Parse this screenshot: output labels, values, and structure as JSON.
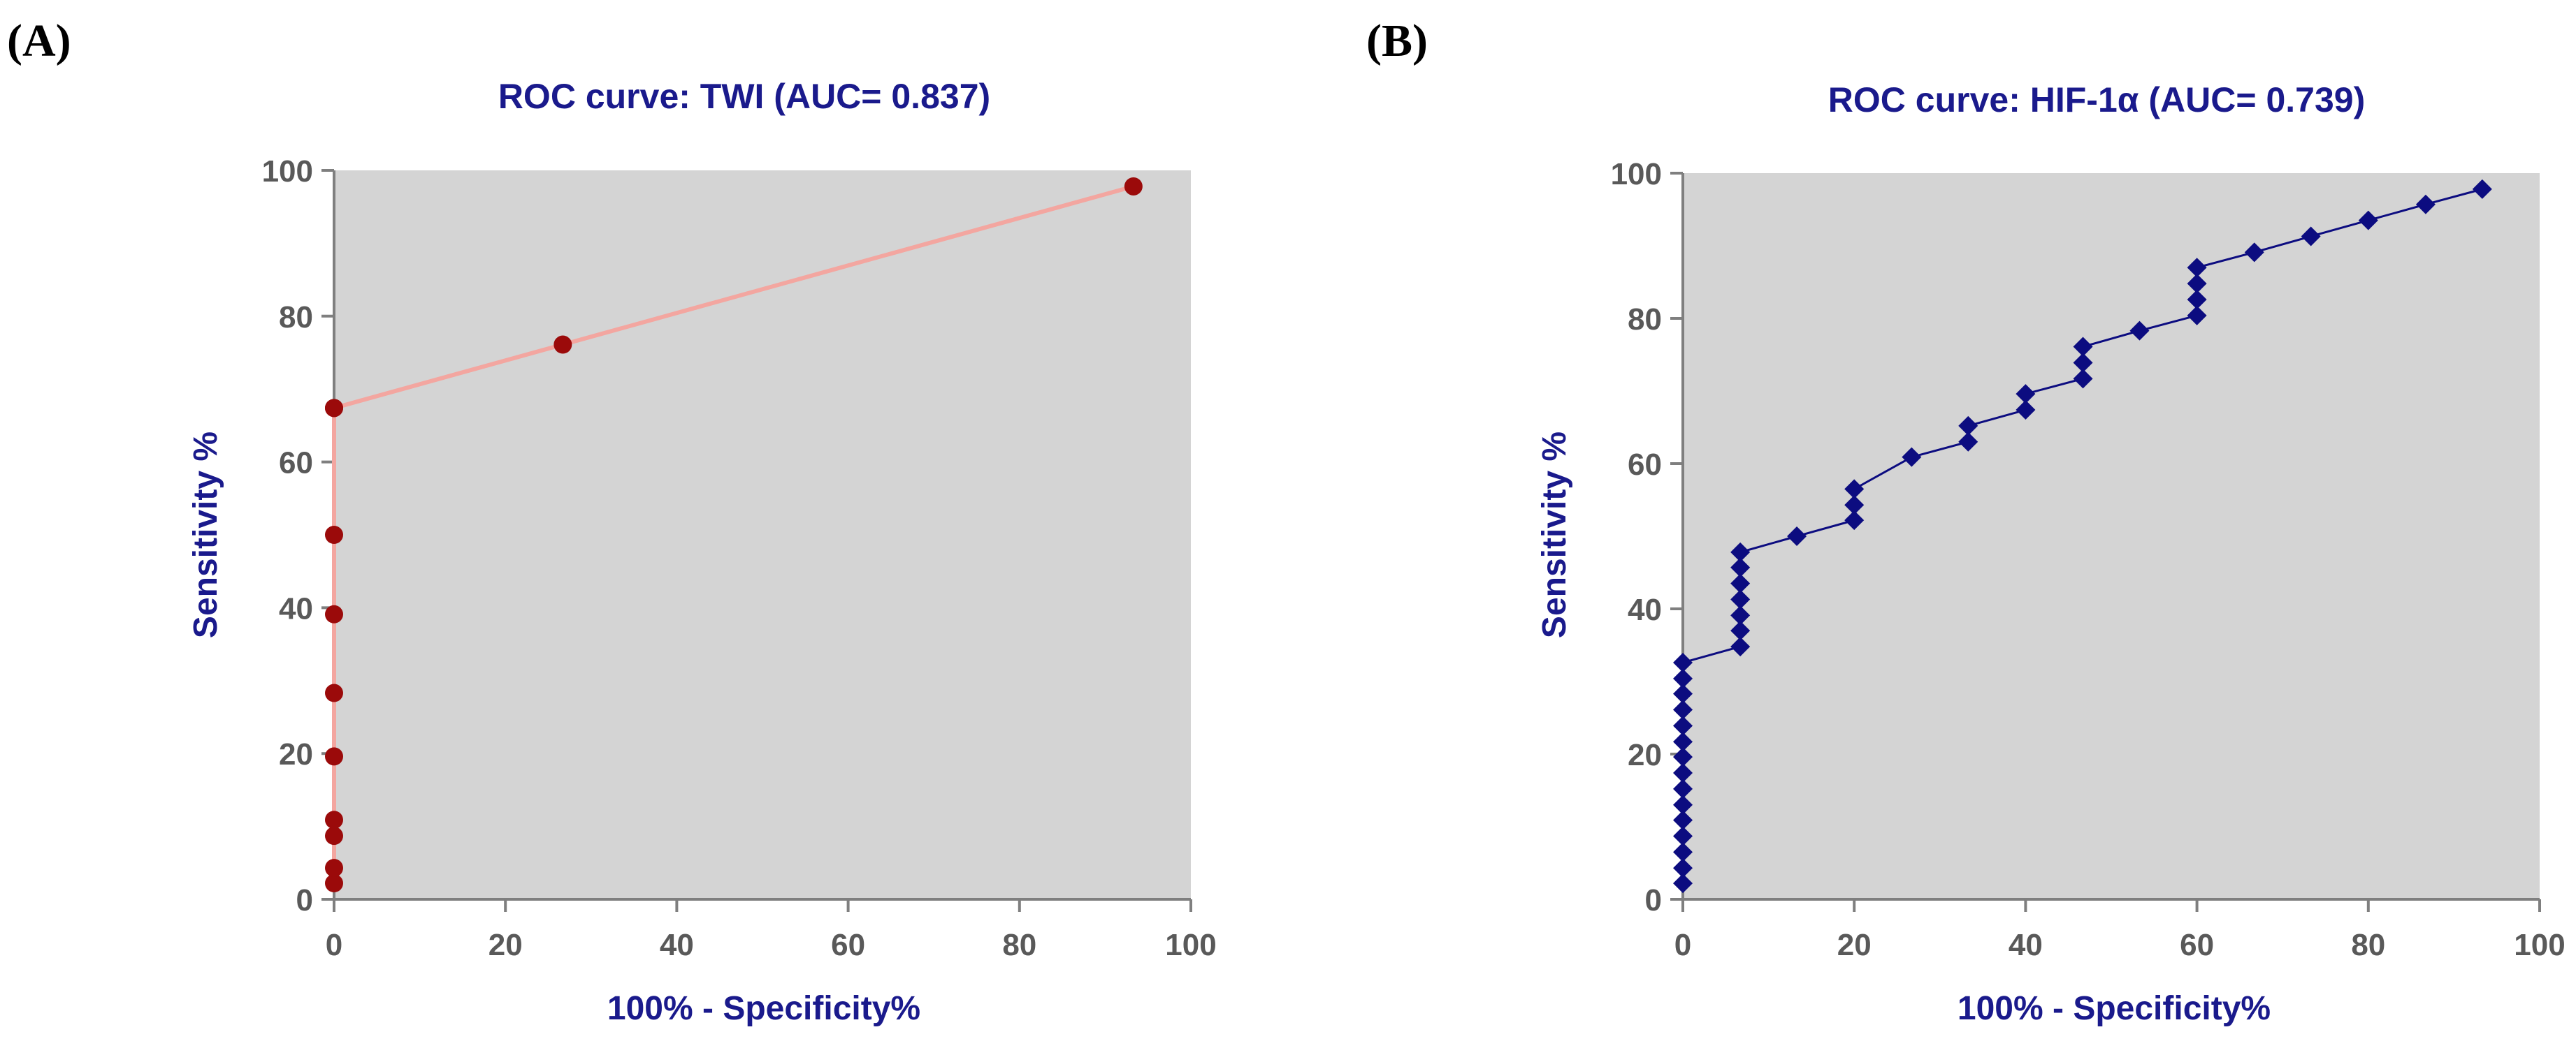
{
  "colors": {
    "plot_background": "#d4d4d4",
    "axis": "#7f7f7f",
    "title": "#1a1a8c",
    "tick_label": "#595959",
    "series_a_line": "#f3a6a0",
    "series_a_marker": "#9b0a0a",
    "series_b_line": "#0c0c80",
    "series_b_marker": "#0c0c80"
  },
  "chart_data": [
    {
      "panel_label": "(A)",
      "type": "line",
      "title": "ROC curve: TWI (AUC= 0.837)",
      "xlabel": "100% - Specificity%",
      "ylabel": "Sensitivity %",
      "xlim": [
        0,
        100
      ],
      "ylim": [
        0,
        100
      ],
      "xticks": [
        0,
        20,
        40,
        60,
        80,
        100
      ],
      "yticks": [
        0,
        20,
        40,
        60,
        80,
        100
      ],
      "marker": "circle",
      "series": [
        {
          "name": "TWI",
          "x": [
            0,
            0,
            0,
            0,
            0,
            0,
            0,
            0,
            0,
            0,
            26.7,
            93.3
          ],
          "y": [
            2.2,
            4.3,
            8.7,
            10.9,
            19.6,
            28.3,
            39.1,
            50.0,
            67.4,
            67.4,
            76.1,
            97.8
          ]
        }
      ]
    },
    {
      "panel_label": "(B)",
      "type": "line",
      "title": "ROC curve: HIF-1α  (AUC= 0.739)",
      "xlabel": "100% - Specificity%",
      "ylabel": "Sensitivity %",
      "xlim": [
        0,
        100
      ],
      "ylim": [
        0,
        100
      ],
      "xticks": [
        0,
        20,
        40,
        60,
        80,
        100
      ],
      "yticks": [
        0,
        20,
        40,
        60,
        80,
        100
      ],
      "marker": "diamond",
      "series": [
        {
          "name": "HIF-1α",
          "x": [
            0,
            0,
            0,
            0,
            0,
            0,
            0,
            0,
            0,
            0,
            0,
            0,
            0,
            0,
            0,
            6.7,
            6.7,
            6.7,
            6.7,
            6.7,
            6.7,
            6.7,
            13.3,
            20,
            20,
            20,
            26.7,
            33.3,
            33.3,
            40,
            40,
            46.7,
            46.7,
            46.7,
            53.3,
            60,
            60,
            60,
            60,
            66.7,
            73.3,
            80,
            86.7,
            93.3
          ],
          "y": [
            2.2,
            4.3,
            6.5,
            8.7,
            10.9,
            13.0,
            15.2,
            17.4,
            19.6,
            21.7,
            23.9,
            26.1,
            28.3,
            30.4,
            32.6,
            34.8,
            37.0,
            39.1,
            41.3,
            43.5,
            45.7,
            47.8,
            50.0,
            52.2,
            54.3,
            56.5,
            60.9,
            63.0,
            65.2,
            67.4,
            69.6,
            71.7,
            73.9,
            76.1,
            78.3,
            80.4,
            82.6,
            84.8,
            87.0,
            89.1,
            91.3,
            93.5,
            95.7,
            97.8
          ]
        }
      ]
    }
  ]
}
